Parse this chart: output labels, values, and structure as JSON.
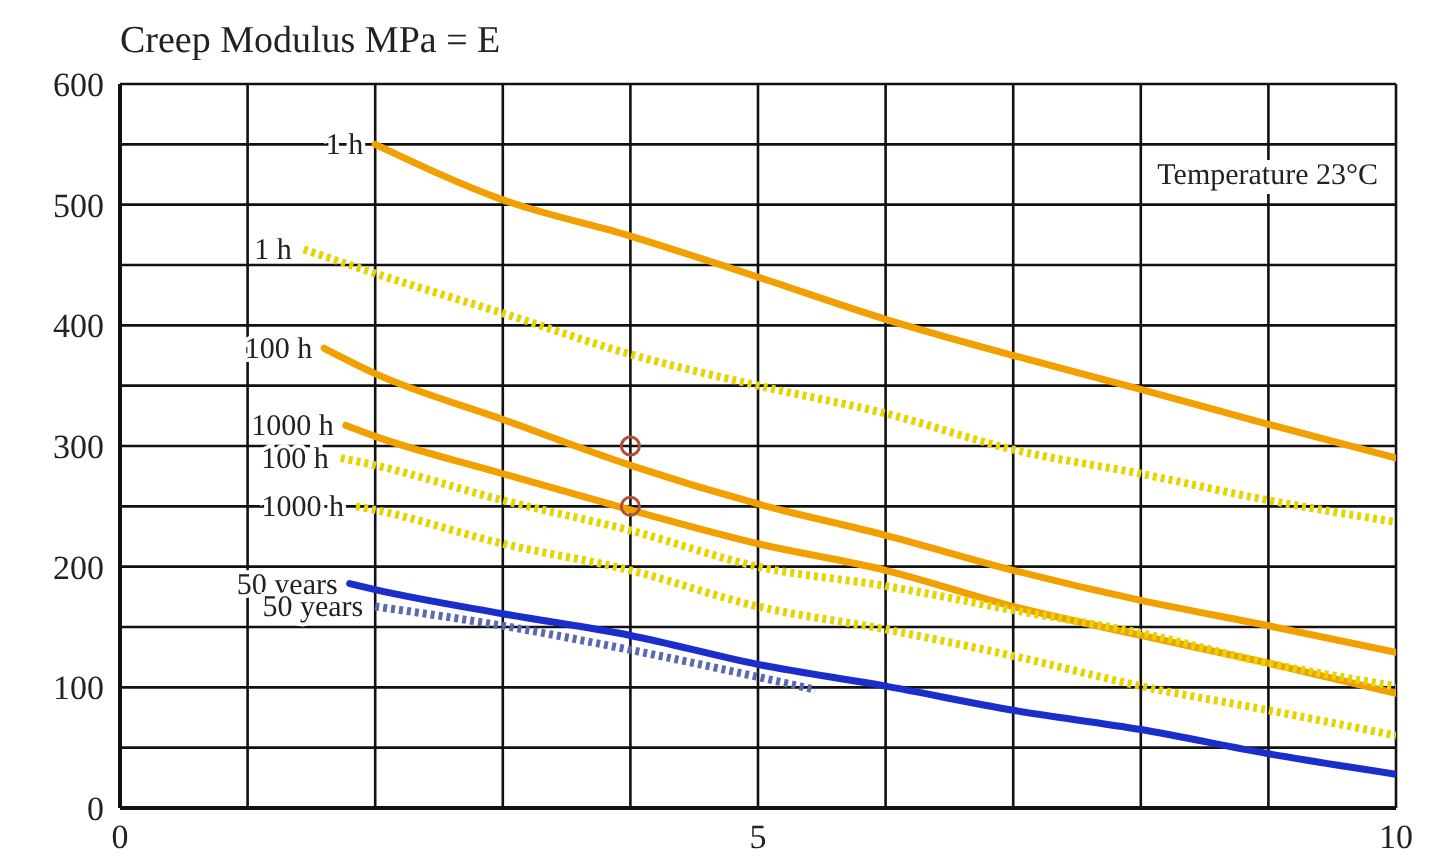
{
  "chart_data": {
    "type": "line",
    "ylabel": "Creep Modulus MPa = E",
    "annotations": [
      "Temperature 23°C"
    ],
    "xlim": [
      0,
      10
    ],
    "xticks": [
      0,
      {
        "value": 1,
        "label": null
      },
      {
        "value": 2,
        "label": null
      },
      {
        "value": 3,
        "label": null
      },
      {
        "value": 4,
        "label": null
      },
      5,
      {
        "value": 6,
        "label": null
      },
      {
        "value": 7,
        "label": null
      },
      {
        "value": 8,
        "label": null
      },
      {
        "value": 9,
        "label": null
      },
      10
    ],
    "ylim": [
      0,
      600
    ],
    "yticks": [
      0,
      {
        "value": 50,
        "label": null
      },
      100,
      {
        "value": 150,
        "label": null
      },
      200,
      {
        "value": 250,
        "label": null
      },
      300,
      {
        "value": 350,
        "label": null
      },
      400,
      {
        "value": 450,
        "label": null
      },
      500,
      {
        "value": 550,
        "label": null
      },
      600
    ],
    "grid": true,
    "marker": "none",
    "series": [
      {
        "name": "1 h",
        "color": "#f2a000",
        "line_style": "solid",
        "x": [
          2,
          3,
          4,
          5,
          6,
          7,
          8,
          9,
          10
        ],
        "values": [
          550,
          504,
          474,
          440,
          405,
          375,
          347,
          318,
          290
        ]
      },
      {
        "name": "1 h",
        "color": "#e6d400",
        "line_style": "dotted",
        "x": [
          1.44,
          2,
          3,
          4,
          5,
          6,
          7,
          8,
          9,
          10
        ],
        "values": [
          463,
          443,
          410,
          376,
          350,
          327,
          297,
          277,
          255,
          237
        ]
      },
      {
        "name": "100 h",
        "color": "#f2a000",
        "line_style": "solid",
        "x": [
          1.6,
          2,
          3,
          4,
          5,
          6,
          7,
          8,
          9,
          10
        ],
        "values": [
          381,
          360,
          322,
          284,
          252,
          226,
          197,
          172,
          151,
          129
        ]
      },
      {
        "name": "1000 h",
        "color": "#f2a000",
        "line_style": "solid",
        "x": [
          1.77,
          2,
          3,
          4,
          5,
          6,
          7,
          8,
          9,
          10
        ],
        "values": [
          317,
          308,
          277,
          247,
          219,
          197,
          167,
          143,
          120,
          95
        ]
      },
      {
        "name": "100 h",
        "color": "#e6d400",
        "line_style": "dotted",
        "x": [
          1.73,
          2,
          3,
          4,
          5,
          6,
          7,
          8,
          9,
          10
        ],
        "values": [
          290,
          284,
          255,
          230,
          200,
          184,
          164,
          145,
          120,
          101
        ]
      },
      {
        "name": "1000 h",
        "color": "#e6d400",
        "line_style": "dotted",
        "x": [
          1.85,
          2,
          3,
          4,
          5,
          6,
          7,
          8,
          9,
          10
        ],
        "values": [
          250,
          247,
          219,
          197,
          167,
          148,
          126,
          101,
          81,
          60
        ]
      },
      {
        "name": "50 years",
        "color": "#1a2ecc",
        "line_style": "solid",
        "x": [
          1.8,
          2,
          3,
          4,
          5,
          6,
          7,
          8,
          9,
          10
        ],
        "values": [
          186,
          181,
          161,
          143,
          119,
          101,
          81,
          65,
          45,
          28
        ]
      },
      {
        "name": "50 years",
        "color": "#5a6ab0",
        "line_style": "dotted",
        "x": [
          2,
          3,
          4,
          5.45
        ],
        "values": [
          167,
          151,
          131,
          98
        ]
      },
      {
        "type": "scatter",
        "color": "#b0503c",
        "marker": "circle",
        "x": [
          4,
          4
        ],
        "values": [
          300,
          250
        ]
      }
    ]
  }
}
